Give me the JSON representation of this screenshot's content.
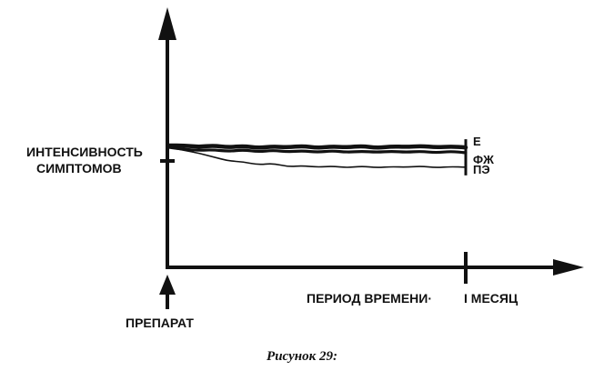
{
  "chart_data": {
    "type": "line",
    "caption": "Рисунок 29:",
    "ylabel_line1": "ИНТЕНСИВНОСТЬ",
    "ylabel_line2": "СИМПТОМОВ",
    "xlabel": "ПЕРИОД ВРЕМЕНИ·",
    "x_end_label": "I МЕСЯЦ",
    "x_start_label": "ПРЕПАРАТ",
    "xlim": [
      0,
      1
    ],
    "ylim": [
      0,
      1
    ],
    "series": [
      {
        "name": "Е",
        "stroke": "thick",
        "x": [
          0.0,
          0.05,
          0.1,
          0.15,
          0.2,
          0.25,
          0.3,
          0.35,
          0.4,
          0.45,
          0.5,
          0.55,
          0.6,
          0.65,
          0.7,
          0.75,
          0.8,
          0.85,
          0.9,
          0.95,
          1.0
        ],
        "values": [
          1.0,
          1.0,
          0.97,
          1.0,
          0.96,
          0.99,
          0.95,
          0.98,
          0.96,
          0.99,
          0.95,
          0.98,
          0.96,
          0.99,
          0.95,
          0.98,
          0.97,
          0.99,
          0.96,
          0.98,
          0.96
        ]
      },
      {
        "name": "ФЖ",
        "stroke": "medium",
        "x": [
          0.0,
          0.05,
          0.1,
          0.15,
          0.2,
          0.25,
          0.3,
          0.35,
          0.4,
          0.45,
          0.5,
          0.55,
          0.6,
          0.65,
          0.7,
          0.75,
          0.8,
          0.85,
          0.9,
          0.95,
          1.0
        ],
        "values": [
          0.96,
          0.92,
          0.9,
          0.91,
          0.88,
          0.91,
          0.87,
          0.9,
          0.87,
          0.89,
          0.86,
          0.89,
          0.86,
          0.88,
          0.86,
          0.88,
          0.86,
          0.88,
          0.85,
          0.88,
          0.85
        ]
      },
      {
        "name": "ПЭ",
        "stroke": "thin",
        "x": [
          0.0,
          0.05,
          0.1,
          0.15,
          0.2,
          0.25,
          0.3,
          0.35,
          0.4,
          0.45,
          0.5,
          0.55,
          0.6,
          0.65,
          0.7,
          0.75,
          0.8,
          0.85,
          0.9,
          0.95,
          1.0
        ],
        "values": [
          0.96,
          0.9,
          0.84,
          0.76,
          0.68,
          0.66,
          0.6,
          0.63,
          0.56,
          0.58,
          0.55,
          0.57,
          0.54,
          0.57,
          0.54,
          0.56,
          0.55,
          0.57,
          0.54,
          0.56,
          0.55
        ]
      }
    ],
    "grid": false,
    "legend": "right-of-lines"
  },
  "colors": {
    "ink": "#111111",
    "background": "#ffffff"
  }
}
